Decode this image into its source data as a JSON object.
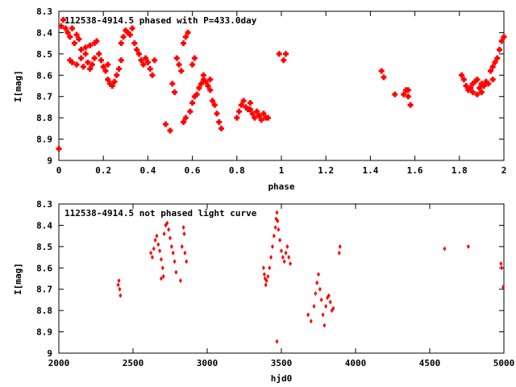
{
  "chart_data": [
    {
      "type": "scatter",
      "title": "112538-4914.5 phased with P=433.0day",
      "xlabel": "phase",
      "ylabel": "I[mag]",
      "xlim": [
        0,
        2
      ],
      "ylim": [
        8.3,
        9.0
      ],
      "y_inverted": true,
      "xticks": [
        "0",
        "0.2",
        "0.4",
        "0.6",
        "0.8",
        "1",
        "1.2",
        "1.4",
        "1.6",
        "1.8",
        "2"
      ],
      "yticks": [
        "8.3",
        "8.4",
        "8.5",
        "8.6",
        "8.7",
        "8.8",
        "8.9",
        "9"
      ],
      "grid": false,
      "marker_color": "#ff0000",
      "points": [
        [
          0.0,
          8.945
        ],
        [
          0.01,
          8.37
        ],
        [
          0.02,
          8.34
        ],
        [
          0.03,
          8.38
        ],
        [
          0.04,
          8.4
        ],
        [
          0.05,
          8.42
        ],
        [
          0.06,
          8.38
        ],
        [
          0.07,
          8.45
        ],
        [
          0.08,
          8.41
        ],
        [
          0.09,
          8.43
        ],
        [
          0.05,
          8.53
        ],
        [
          0.06,
          8.54
        ],
        [
          0.08,
          8.55
        ],
        [
          0.1,
          8.52
        ],
        [
          0.11,
          8.56
        ],
        [
          0.12,
          8.5
        ],
        [
          0.13,
          8.54
        ],
        [
          0.14,
          8.57
        ],
        [
          0.15,
          8.55
        ],
        [
          0.16,
          8.52
        ],
        [
          0.1,
          8.48
        ],
        [
          0.12,
          8.47
        ],
        [
          0.14,
          8.46
        ],
        [
          0.16,
          8.45
        ],
        [
          0.17,
          8.44
        ],
        [
          0.18,
          8.5
        ],
        [
          0.19,
          8.53
        ],
        [
          0.2,
          8.56
        ],
        [
          0.21,
          8.58
        ],
        [
          0.22,
          8.55
        ],
        [
          0.22,
          8.62
        ],
        [
          0.23,
          8.64
        ],
        [
          0.24,
          8.65
        ],
        [
          0.25,
          8.63
        ],
        [
          0.26,
          8.6
        ],
        [
          0.27,
          8.57
        ],
        [
          0.28,
          8.53
        ],
        [
          0.28,
          8.45
        ],
        [
          0.29,
          8.42
        ],
        [
          0.3,
          8.39
        ],
        [
          0.31,
          8.4
        ],
        [
          0.32,
          8.41
        ],
        [
          0.33,
          8.38
        ],
        [
          0.34,
          8.45
        ],
        [
          0.35,
          8.48
        ],
        [
          0.36,
          8.5
        ],
        [
          0.37,
          8.53
        ],
        [
          0.38,
          8.55
        ],
        [
          0.39,
          8.52
        ],
        [
          0.4,
          8.54
        ],
        [
          0.41,
          8.57
        ],
        [
          0.42,
          8.6
        ],
        [
          0.43,
          8.53
        ],
        [
          0.48,
          8.83
        ],
        [
          0.5,
          8.86
        ],
        [
          0.51,
          8.64
        ],
        [
          0.52,
          8.68
        ],
        [
          0.53,
          8.52
        ],
        [
          0.54,
          8.55
        ],
        [
          0.55,
          8.58
        ],
        [
          0.56,
          8.82
        ],
        [
          0.57,
          8.8
        ],
        [
          0.56,
          8.45
        ],
        [
          0.57,
          8.42
        ],
        [
          0.58,
          8.4
        ],
        [
          0.59,
          8.77
        ],
        [
          0.6,
          8.73
        ],
        [
          0.61,
          8.7
        ],
        [
          0.62,
          8.69
        ],
        [
          0.63,
          8.66
        ],
        [
          0.64,
          8.64
        ],
        [
          0.65,
          8.62
        ],
        [
          0.66,
          8.63
        ],
        [
          0.67,
          8.65
        ],
        [
          0.68,
          8.67
        ],
        [
          0.69,
          8.72
        ],
        [
          0.7,
          8.74
        ],
        [
          0.71,
          8.78
        ],
        [
          0.72,
          8.82
        ],
        [
          0.73,
          8.85
        ],
        [
          0.6,
          8.55
        ],
        [
          0.61,
          8.52
        ],
        [
          0.65,
          8.6
        ],
        [
          0.68,
          8.62
        ],
        [
          0.8,
          8.8
        ],
        [
          0.81,
          8.77
        ],
        [
          0.82,
          8.74
        ],
        [
          0.83,
          8.72
        ],
        [
          0.84,
          8.75
        ],
        [
          0.85,
          8.76
        ],
        [
          0.86,
          8.73
        ],
        [
          0.87,
          8.78
        ],
        [
          0.88,
          8.8
        ],
        [
          0.89,
          8.77
        ],
        [
          0.9,
          8.79
        ],
        [
          0.91,
          8.81
        ],
        [
          0.92,
          8.78
        ],
        [
          0.93,
          8.8
        ],
        [
          0.94,
          8.8
        ],
        [
          0.86,
          8.76
        ],
        [
          0.99,
          8.5
        ],
        [
          1.01,
          8.53
        ],
        [
          1.02,
          8.5
        ],
        [
          1.45,
          8.58
        ],
        [
          1.46,
          8.61
        ],
        [
          1.51,
          8.69
        ],
        [
          1.55,
          8.69
        ],
        [
          1.56,
          8.67
        ],
        [
          1.57,
          8.7
        ],
        [
          1.58,
          8.74
        ],
        [
          1.57,
          8.67
        ],
        [
          1.81,
          8.6
        ],
        [
          1.82,
          8.62
        ],
        [
          1.83,
          8.65
        ],
        [
          1.84,
          8.67
        ],
        [
          1.85,
          8.66
        ],
        [
          1.86,
          8.68
        ],
        [
          1.87,
          8.63
        ],
        [
          1.88,
          8.69
        ],
        [
          1.89,
          8.66
        ],
        [
          1.9,
          8.64
        ],
        [
          1.91,
          8.65
        ],
        [
          1.92,
          8.63
        ],
        [
          1.93,
          8.64
        ],
        [
          1.94,
          8.58
        ],
        [
          1.95,
          8.56
        ],
        [
          1.96,
          8.54
        ],
        [
          1.97,
          8.52
        ],
        [
          1.98,
          8.48
        ],
        [
          1.99,
          8.44
        ],
        [
          2.0,
          8.42
        ],
        [
          1.95,
          8.62
        ],
        [
          1.9,
          8.68
        ],
        [
          1.88,
          8.62
        ],
        [
          1.86,
          8.64
        ]
      ]
    },
    {
      "type": "scatter",
      "title": "112538-4914.5 not phased light curve",
      "xlabel": "hjd0",
      "ylabel": "I[mag]",
      "xlim": [
        2000,
        5000
      ],
      "ylim": [
        8.3,
        9.0
      ],
      "y_inverted": true,
      "xticks": [
        "2000",
        "2500",
        "3000",
        "3500",
        "4000",
        "4500",
        "5000"
      ],
      "yticks": [
        "8.3",
        "8.4",
        "8.5",
        "8.6",
        "8.7",
        "8.8",
        "8.9",
        "9"
      ],
      "grid": false,
      "marker_color": "#ff0000",
      "points": [
        [
          2400,
          8.68
        ],
        [
          2405,
          8.66
        ],
        [
          2410,
          8.7
        ],
        [
          2415,
          8.73
        ],
        [
          2620,
          8.53
        ],
        [
          2630,
          8.55
        ],
        [
          2640,
          8.51
        ],
        [
          2650,
          8.47
        ],
        [
          2660,
          8.45
        ],
        [
          2670,
          8.49
        ],
        [
          2680,
          8.52
        ],
        [
          2690,
          8.56
        ],
        [
          2700,
          8.6
        ],
        [
          2705,
          8.64
        ],
        [
          2690,
          8.65
        ],
        [
          2710,
          8.44
        ],
        [
          2720,
          8.4
        ],
        [
          2730,
          8.39
        ],
        [
          2740,
          8.42
        ],
        [
          2750,
          8.46
        ],
        [
          2760,
          8.5
        ],
        [
          2770,
          8.53
        ],
        [
          2780,
          8.57
        ],
        [
          2790,
          8.62
        ],
        [
          2820,
          8.66
        ],
        [
          2830,
          8.5
        ],
        [
          2840,
          8.41
        ],
        [
          2845,
          8.44
        ],
        [
          2850,
          8.53
        ],
        [
          2860,
          8.57
        ],
        [
          3380,
          8.6
        ],
        [
          3385,
          8.63
        ],
        [
          3390,
          8.65
        ],
        [
          3395,
          8.68
        ],
        [
          3400,
          8.66
        ],
        [
          3410,
          8.64
        ],
        [
          3420,
          8.6
        ],
        [
          3430,
          8.55
        ],
        [
          3440,
          8.5
        ],
        [
          3450,
          8.45
        ],
        [
          3460,
          8.41
        ],
        [
          3465,
          8.37
        ],
        [
          3470,
          8.34
        ],
        [
          3475,
          8.38
        ],
        [
          3480,
          8.42
        ],
        [
          3490,
          8.47
        ],
        [
          3500,
          8.52
        ],
        [
          3510,
          8.55
        ],
        [
          3520,
          8.57
        ],
        [
          3530,
          8.53
        ],
        [
          3540,
          8.5
        ],
        [
          3550,
          8.55
        ],
        [
          3560,
          8.58
        ],
        [
          3470,
          8.945
        ],
        [
          3680,
          8.82
        ],
        [
          3700,
          8.85
        ],
        [
          3720,
          8.78
        ],
        [
          3730,
          8.72
        ],
        [
          3740,
          8.67
        ],
        [
          3750,
          8.63
        ],
        [
          3760,
          8.7
        ],
        [
          3770,
          8.75
        ],
        [
          3780,
          8.82
        ],
        [
          3790,
          8.87
        ],
        [
          3800,
          8.78
        ],
        [
          3810,
          8.74
        ],
        [
          3820,
          8.73
        ],
        [
          3830,
          8.76
        ],
        [
          3840,
          8.8
        ],
        [
          3850,
          8.79
        ],
        [
          3890,
          8.53
        ],
        [
          3895,
          8.5
        ],
        [
          4600,
          8.51
        ],
        [
          4760,
          8.5
        ],
        [
          4980,
          8.58
        ],
        [
          4985,
          8.6
        ],
        [
          4995,
          8.69
        ]
      ]
    }
  ]
}
